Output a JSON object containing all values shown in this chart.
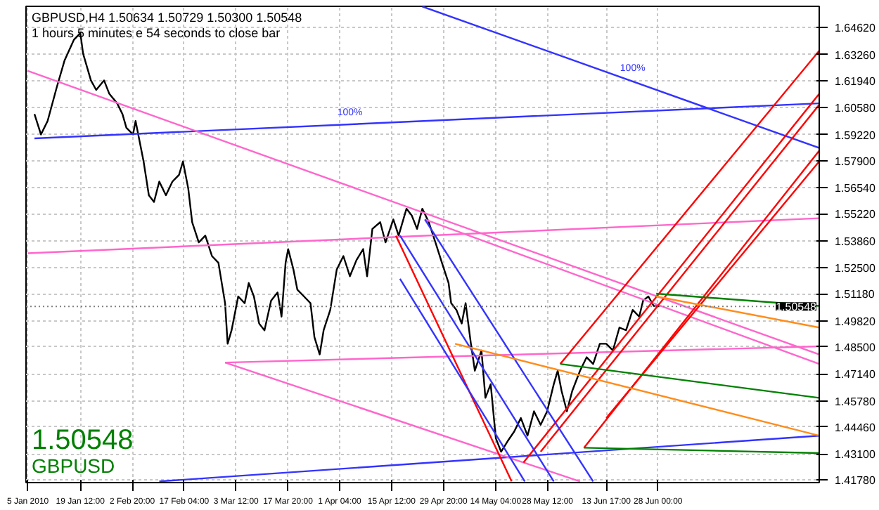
{
  "chart_data": {
    "type": "line",
    "title": "GBPUSD,H4  1.50634 1.50729 1.50300 1.50548",
    "subtitle": "1 hours 5 minutes e 54 seconds to close bar",
    "xlim": [
      "2010-01-04T12:00",
      "2010-08-11T12:00"
    ],
    "ylim": [
      1.4165,
      1.657
    ],
    "xticks": [
      {
        "value": "2010-01-05T00:00",
        "label": "5 Jan 2010"
      },
      {
        "value": "2010-01-19T12:00",
        "label": "19 Jan 12:00"
      },
      {
        "value": "2010-02-02T20:00",
        "label": "2 Feb 20:00"
      },
      {
        "value": "2010-02-17T04:00",
        "label": "17 Feb 04:00"
      },
      {
        "value": "2010-03-03T12:00",
        "label": "3 Mar 12:00"
      },
      {
        "value": "2010-03-17T20:00",
        "label": "17 Mar 20:00"
      },
      {
        "value": "2010-04-01T04:00",
        "label": "1 Apr 04:00"
      },
      {
        "value": "2010-04-15T12:00",
        "label": "15 Apr 12:00"
      },
      {
        "value": "2010-04-29T20:00",
        "label": "29 Apr 20:00"
      },
      {
        "value": "2010-05-14T04:00",
        "label": "14 May 04:00"
      },
      {
        "value": "2010-05-28T12:00",
        "label": "28 May 12:00"
      },
      {
        "value": "2010-06-13T17:00",
        "label": "13 Jun 17:00"
      },
      {
        "value": "2010-06-28T00:00",
        "label": "28 Jun 00:00"
      }
    ],
    "yticks": [
      {
        "value": 1.6462,
        "label": "1.64620"
      },
      {
        "value": 1.6326,
        "label": "1.63260"
      },
      {
        "value": 1.6194,
        "label": "1.61940"
      },
      {
        "value": 1.6058,
        "label": "1.60580"
      },
      {
        "value": 1.5922,
        "label": "1.59220"
      },
      {
        "value": 1.579,
        "label": "1.57900"
      },
      {
        "value": 1.5654,
        "label": "1.56540"
      },
      {
        "value": 1.5522,
        "label": "1.55220"
      },
      {
        "value": 1.5386,
        "label": "1.53860"
      },
      {
        "value": 1.525,
        "label": "1.52500"
      },
      {
        "value": 1.5118,
        "label": "1.51180"
      },
      {
        "value": 1.4982,
        "label": "1.49820"
      },
      {
        "value": 1.485,
        "label": "1.48500"
      },
      {
        "value": 1.4714,
        "label": "1.47140"
      },
      {
        "value": 1.4578,
        "label": "1.45780"
      },
      {
        "value": 1.4446,
        "label": "1.44460"
      },
      {
        "value": 1.431,
        "label": "1.43100"
      },
      {
        "value": 1.4178,
        "label": "1.41780"
      }
    ],
    "grid": true,
    "series": [
      {
        "color": "#000000",
        "x": [
          "2010-01-06T20:00",
          "2010-01-08T15:00",
          "2010-01-10T11:00",
          "2010-01-13T00:00",
          "2010-01-15T04:00",
          "2010-01-17T17:00",
          "2010-01-19T12:00",
          "2010-01-20T06:00",
          "2010-01-22T10:00",
          "2010-01-23T21:00",
          "2010-01-26T01:00",
          "2010-01-27T12:00",
          "2010-01-29T16:00",
          "2010-01-31T03:00",
          "2010-02-01T05:00",
          "2010-02-03T01:00",
          "2010-02-03T18:00",
          "2010-02-05T23:00",
          "2010-02-07T10:00",
          "2010-02-08T20:00",
          "2010-02-10T07:00",
          "2010-02-12T03:00",
          "2010-02-13T22:00",
          "2010-02-15T18:00",
          "2010-02-16T20:00",
          "2010-02-18T07:00",
          "2010-02-19T09:00",
          "2010-02-21T05:00",
          "2010-02-23T00:00",
          "2010-02-24T20:00",
          "2010-02-26T15:00",
          "2010-02-28T11:00",
          "2010-03-01T04:00",
          "2010-03-02T06:00",
          "2010-03-04T02:00",
          "2010-03-05T21:00",
          "2010-03-07T00:00",
          "2010-03-08T10:00",
          "2010-03-09T21:00",
          "2010-03-11T08:00",
          "2010-03-13T04:00",
          "2010-03-14T23:00",
          "2010-03-16T01:00",
          "2010-03-17T04:00",
          "2010-03-17T21:00",
          "2010-03-19T08:00",
          "2010-03-20T10:00",
          "2010-03-22T06:00",
          "2010-03-24T01:00",
          "2010-03-25T03:00",
          "2010-03-26T14:00",
          "2010-03-27T16:00",
          "2010-03-29T12:00",
          "2010-03-31T07:00",
          "2010-04-02T03:00",
          "2010-04-03T22:00",
          "2010-04-05T18:00",
          "2010-04-07T14:00",
          "2010-04-08T16:00",
          "2010-04-10T03:00",
          "2010-04-12T07:00",
          "2010-04-13T18:00",
          "2010-04-15T22:00",
          "2010-04-17T09:00",
          "2010-04-19T13:00",
          "2010-04-21T00:00",
          "2010-04-22T11:00",
          "2010-04-23T22:00",
          "2010-04-25T17:00",
          "2010-04-27T13:00",
          "2010-04-29T08:00",
          "2010-05-01T04:00",
          "2010-05-01T21:00",
          "2010-05-03T08:00",
          "2010-05-04T19:00",
          "2010-05-05T21:00",
          "2010-05-07T08:00",
          "2010-05-08T10:00",
          "2010-05-10T06:00",
          "2010-05-11T08:00",
          "2010-05-12T19:00",
          "2010-05-14T05:00",
          "2010-05-15T16:00",
          "2010-05-17T12:00",
          "2010-05-19T07:00",
          "2010-05-21T03:00",
          "2010-05-22T23:00",
          "2010-05-24T18:00",
          "2010-05-26T14:00",
          "2010-05-28T09:00",
          "2010-05-30T05:00",
          "2010-05-31T07:00",
          "2010-06-01T09:00",
          "2010-06-02T20:00",
          "2010-06-04T07:00",
          "2010-06-06T11:00",
          "2010-06-08T07:00",
          "2010-06-10T02:00",
          "2010-06-11T22:00",
          "2010-06-13T17:00",
          "2010-06-15T13:00",
          "2010-06-17T08:00",
          "2010-06-19T04:00",
          "2010-06-21T00:00",
          "2010-06-22T19:00",
          "2010-06-23T21:00",
          "2010-06-25T08:00",
          "2010-06-26T19:00",
          "2010-06-28T06:00"
        ],
        "values": [
          1.6026,
          1.5923,
          1.5991,
          1.6162,
          1.6298,
          1.6401,
          1.6435,
          1.6332,
          1.6196,
          1.6148,
          1.6196,
          1.6128,
          1.608,
          1.6026,
          1.5957,
          1.5923,
          1.5991,
          1.5787,
          1.5616,
          1.5582,
          1.5685,
          1.5616,
          1.5685,
          1.5719,
          1.5787,
          1.565,
          1.548,
          1.5378,
          1.5412,
          1.5309,
          1.5275,
          1.5071,
          1.4866,
          1.4934,
          1.5105,
          1.5071,
          1.5173,
          1.5105,
          1.4968,
          1.4934,
          1.5084,
          1.5125,
          1.5003,
          1.5275,
          1.5344,
          1.5241,
          1.5139,
          1.5105,
          1.5071,
          1.49,
          1.4812,
          1.4934,
          1.5037,
          1.5241,
          1.5309,
          1.5207,
          1.5289,
          1.5344,
          1.5207,
          1.5446,
          1.548,
          1.5378,
          1.5494,
          1.5412,
          1.5548,
          1.5514,
          1.5446,
          1.5548,
          1.548,
          1.5378,
          1.5275,
          1.5173,
          1.5071,
          1.5037,
          1.4968,
          1.5071,
          1.4866,
          1.473,
          1.4832,
          1.4593,
          1.4662,
          1.4389,
          1.4321,
          1.4375,
          1.4423,
          1.4491,
          1.4402,
          1.4525,
          1.4457,
          1.4525,
          1.4662,
          1.473,
          1.4627,
          1.4525,
          1.4627,
          1.473,
          1.4798,
          1.4764,
          1.4866,
          1.4866,
          1.4832,
          1.4948,
          1.4934,
          1.5037,
          1.5003,
          1.5084,
          1.5105,
          1.5057,
          1.5055
        ]
      },
      {
        "color": "#3333ff",
        "x": [
          "2010-01-06T20:00",
          "2010-08-11T12:00"
        ],
        "values": [
          1.5903,
          1.608
        ]
      },
      {
        "color": "#3333ff",
        "x": [
          "2010-04-23T22:00",
          "2010-08-11T12:00"
        ],
        "values": [
          1.6569,
          1.5855
        ]
      },
      {
        "color": "#3333ff",
        "x": [
          "2010-02-10T07:00",
          "2010-08-11T12:00"
        ],
        "values": [
          1.4171,
          1.4402
        ]
      },
      {
        "color": "#ff66cc",
        "x": [
          "2010-01-05T00:00",
          "2010-08-11T12:00"
        ],
        "values": [
          1.6244,
          1.4812
        ]
      },
      {
        "color": "#ff66cc",
        "x": [
          "2010-02-28T11:00",
          "2010-08-11T12:00"
        ],
        "values": [
          1.4771,
          1.4853
        ]
      },
      {
        "color": "#ff66cc",
        "x": [
          "2010-02-28T11:00",
          "2010-06-06T11:00"
        ],
        "values": [
          1.4771,
          1.4171
        ]
      },
      {
        "color": "#ff66cc",
        "x": [
          "2010-01-05T00:00",
          "2010-08-11T12:00"
        ],
        "values": [
          1.5323,
          1.55
        ]
      },
      {
        "color": "#ff66cc",
        "x": [
          "2010-04-24T15:00",
          "2010-08-11T12:00"
        ],
        "values": [
          1.5494,
          1.4764
        ]
      },
      {
        "color": "#ff0000",
        "x": [
          "2010-06-01T00:00",
          "2010-08-11T12:00"
        ],
        "values": [
          1.4764,
          1.6346
        ]
      },
      {
        "color": "#ff0000",
        "x": [
          "2010-05-21T20:00",
          "2010-08-11T12:00"
        ],
        "values": [
          1.4266,
          1.6128
        ]
      },
      {
        "color": "#ff0000",
        "x": [
          "2010-05-26T14:00",
          "2010-08-11T12:00"
        ],
        "values": [
          1.4321,
          1.6073
        ]
      },
      {
        "color": "#ff0000",
        "x": [
          "2010-06-07T13:00",
          "2010-08-11T12:00"
        ],
        "values": [
          1.4341,
          1.5841
        ]
      },
      {
        "color": "#ff0000",
        "x": [
          "2010-06-13T17:00",
          "2010-08-11T12:00"
        ],
        "values": [
          1.4491,
          1.5787
        ]
      },
      {
        "color": "#ff0000",
        "x": [
          "2010-04-16T15:00",
          "2010-05-18T14:00"
        ],
        "values": [
          1.5412,
          1.4171
        ]
      },
      {
        "color": "#3333ff",
        "x": [
          "2010-04-24T15:00",
          "2010-06-10T02:00"
        ],
        "values": [
          1.5494,
          1.4171
        ]
      },
      {
        "color": "#3333ff",
        "x": [
          "2010-04-17T18:00",
          "2010-05-30T05:00"
        ],
        "values": [
          1.5412,
          1.4171
        ]
      },
      {
        "color": "#3333ff",
        "x": [
          "2010-04-17T18:00",
          "2010-05-22T05:00"
        ],
        "values": [
          1.5194,
          1.4171
        ]
      },
      {
        "color": "#ff8c1a",
        "x": [
          "2010-05-02T23:00",
          "2010-08-11T12:00"
        ],
        "values": [
          1.4866,
          1.4402
        ]
      },
      {
        "color": "#ff8c1a",
        "x": [
          "2010-06-27T12:00",
          "2010-08-11T12:00"
        ],
        "values": [
          1.5105,
          1.4948
        ]
      },
      {
        "color": "#008000",
        "x": [
          "2010-06-27T12:00",
          "2010-08-11T12:00"
        ],
        "values": [
          1.5119,
          1.5057
        ]
      },
      {
        "color": "#008000",
        "x": [
          "2010-06-01T00:00",
          "2010-08-11T12:00"
        ],
        "values": [
          1.4764,
          1.4593
        ]
      },
      {
        "color": "#008000",
        "x": [
          "2010-06-07T13:00",
          "2010-08-11T12:00"
        ],
        "values": [
          1.4341,
          1.4314
        ]
      }
    ],
    "ref_lines": [
      {
        "axis": "y",
        "value": 1.50548,
        "label": "1.50548"
      }
    ],
    "annotations": [
      "1.50548",
      "GBPUSD",
      {
        "text": "100%",
        "x": "2010-04-03T22:00",
        "y": 1.6005
      },
      {
        "text": "100%",
        "x": "2010-06-21T00:00",
        "y": 1.623
      }
    ]
  }
}
